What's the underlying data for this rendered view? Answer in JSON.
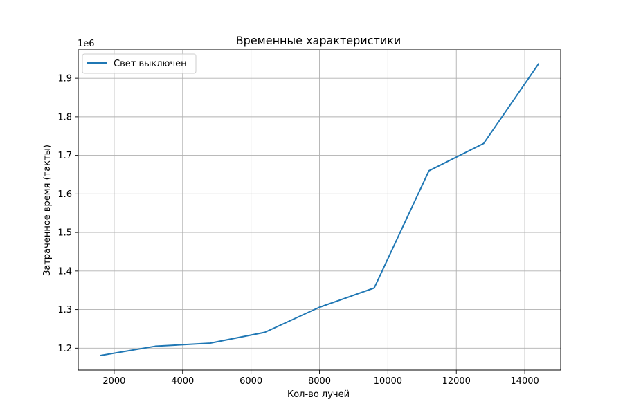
{
  "chart_data": {
    "type": "line",
    "title": "Временные характеристики",
    "xlabel": "Кол-во лучей",
    "ylabel": "Затраченное время (такты)",
    "y_offset_label": "1e6",
    "xlim": [
      950,
      15050
    ],
    "ylim": [
      1.1432,
      1.9738
    ],
    "x_ticks": [
      2000,
      4000,
      6000,
      8000,
      10000,
      12000,
      14000
    ],
    "x_tick_labels": [
      "2000",
      "4000",
      "6000",
      "8000",
      "10000",
      "12000",
      "14000"
    ],
    "y_ticks": [
      1.2,
      1.3,
      1.4,
      1.5,
      1.6,
      1.7,
      1.8,
      1.9
    ],
    "y_tick_labels": [
      "1.2",
      "1.3",
      "1.4",
      "1.5",
      "1.6",
      "1.7",
      "1.8",
      "1.9"
    ],
    "grid": true,
    "legend_position": "upper-left",
    "series": [
      {
        "name": "Свет выключен",
        "color": "#1f77b4",
        "x": [
          1600,
          3200,
          4800,
          6400,
          8000,
          9600,
          11200,
          12800,
          14400
        ],
        "y": [
          1.181,
          1.205,
          1.213,
          1.241,
          1.306,
          1.356,
          1.66,
          1.731,
          1.937
        ]
      }
    ]
  }
}
